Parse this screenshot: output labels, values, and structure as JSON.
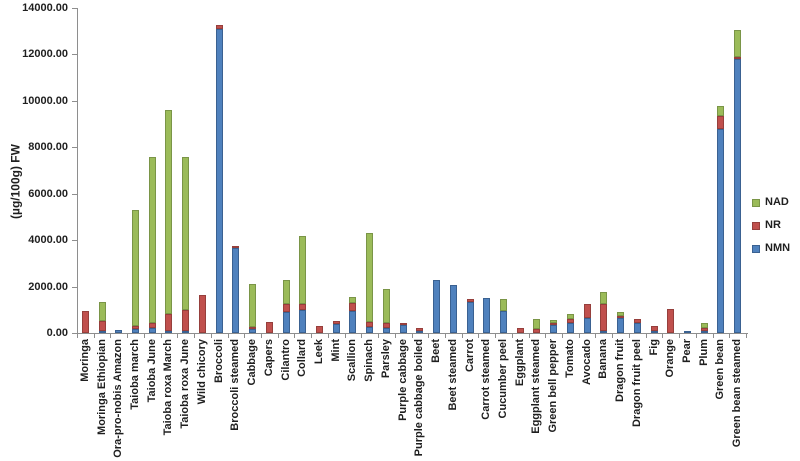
{
  "chart_data": {
    "type": "bar",
    "subtype": "stacked-vertical",
    "title": "",
    "xlabel": "",
    "ylabel": "(µg/100g)  FW",
    "ylim": [
      0,
      14000
    ],
    "ytick_step": 2000,
    "ytick_labels": [
      "0.00",
      "2000.00",
      "4000.00",
      "6000.00",
      "8000.00",
      "10000.00",
      "12000.00",
      "14000.00"
    ],
    "grid": false,
    "legend_position": "right",
    "legend_order": [
      "NAD",
      "NR",
      "NMN"
    ],
    "categories": [
      "Moringa",
      "Moringa Ethiopian",
      "Ora-pro-nobis Amazon",
      "Taioba march",
      "Taioba June",
      "Taioba roxa March",
      "Taioba roxa June",
      "Wild chicory",
      "Broccoli",
      "Broccoli steamed",
      "Cabbage",
      "Capers",
      "Cilantro",
      "Collard",
      "Leek",
      "Mint",
      "Scallion",
      "Spinach",
      "Parsley",
      "Purple cabbage",
      "Purple cabbage boiled",
      "Beet",
      "Beet steamed",
      "Carrot",
      "Carrot steamed",
      "Cucumber peel",
      "Eggplant",
      "Eggplant steamed",
      "Green bell pepper",
      "Tomato",
      "Avocado",
      "Banana",
      "Dragon fruit",
      "Dragon fruit peel",
      "Fig",
      "Orange",
      "Pear",
      "Plum",
      "Green bean",
      "Green bean steamed"
    ],
    "series": [
      {
        "name": "NMN",
        "color": "#4f81bd",
        "border_color": "#3a6191",
        "values": [
          0,
          60,
          140,
          160,
          200,
          90,
          90,
          0,
          13100,
          3650,
          170,
          0,
          910,
          1000,
          0,
          400,
          960,
          250,
          200,
          330,
          60,
          2300,
          2050,
          1330,
          1520,
          950,
          0,
          0,
          340,
          450,
          630,
          100,
          640,
          440,
          30,
          0,
          90,
          30,
          8800,
          11800
        ]
      },
      {
        "name": "NR",
        "color": "#c0504d",
        "border_color": "#963f3c",
        "values": [
          950,
          430,
          0,
          140,
          220,
          730,
          900,
          1650,
          150,
          100,
          110,
          490,
          330,
          250,
          310,
          110,
          340,
          240,
          220,
          90,
          150,
          0,
          0,
          120,
          0,
          0,
          200,
          160,
          40,
          150,
          620,
          1150,
          30,
          150,
          200,
          1020,
          0,
          130,
          570,
          100
        ]
      },
      {
        "name": "NAD",
        "color": "#9bbb59",
        "border_color": "#7a9547",
        "values": [
          0,
          810,
          0,
          5000,
          7150,
          8780,
          6580,
          0,
          0,
          0,
          1850,
          0,
          1040,
          2940,
          0,
          0,
          260,
          3800,
          1490,
          0,
          0,
          0,
          0,
          0,
          0,
          500,
          0,
          430,
          150,
          200,
          0,
          530,
          170,
          0,
          0,
          0,
          0,
          210,
          390,
          1150
        ]
      }
    ]
  }
}
